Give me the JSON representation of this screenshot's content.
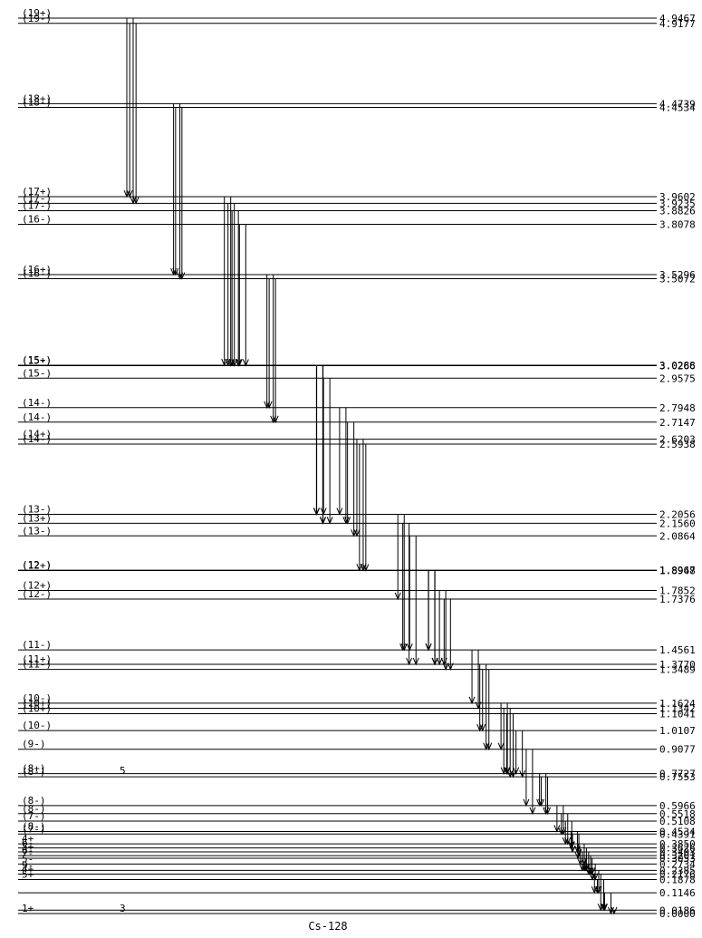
{
  "levels": [
    {
      "energy": "4.9467",
      "spin": "(19+)"
    },
    {
      "energy": "4.9177",
      "spin": "(19-)"
    },
    {
      "energy": "4.4739",
      "spin": "(18+)"
    },
    {
      "energy": "4.4534",
      "spin": "(18-)"
    },
    {
      "energy": "3.9602",
      "spin": "(17+)"
    },
    {
      "energy": "3.9235",
      "spin": "(17-)"
    },
    {
      "energy": "3.8826",
      "spin": "(17-)"
    },
    {
      "energy": "3.8078",
      "spin": "(16-)"
    },
    {
      "energy": "3.5296",
      "spin": "(16+)"
    },
    {
      "energy": "3.5072",
      "spin": "(16-)"
    },
    {
      "energy": "3.0288",
      "spin": "(15+)"
    },
    {
      "energy": "3.0266",
      "spin": "(15-)"
    },
    {
      "energy": "2.9575",
      "spin": "(15-)"
    },
    {
      "energy": "2.7948",
      "spin": "(14-)"
    },
    {
      "energy": "2.7147",
      "spin": "(14-)"
    },
    {
      "energy": "2.6203",
      "spin": "(14+)"
    },
    {
      "energy": "2.5938",
      "spin": "(14-)"
    },
    {
      "energy": "2.2056",
      "spin": "(13-)"
    },
    {
      "energy": "2.1560",
      "spin": "(13+)"
    },
    {
      "energy": "2.0864",
      "spin": "(13-)"
    },
    {
      "energy": "1.8967",
      "spin": "(12-)"
    },
    {
      "energy": "1.8948",
      "spin": "(12+)"
    },
    {
      "energy": "1.7852",
      "spin": "(12+)"
    },
    {
      "energy": "1.7376",
      "spin": "(12-)"
    },
    {
      "energy": "1.4561",
      "spin": "(11-)"
    },
    {
      "energy": "1.3770",
      "spin": "(11+)"
    },
    {
      "energy": "1.3489",
      "spin": "(11-)"
    },
    {
      "energy": "1.1624",
      "spin": "(10-)"
    },
    {
      "energy": "1.1342",
      "spin": "(10+)"
    },
    {
      "energy": "1.1041",
      "spin": "(10+)"
    },
    {
      "energy": "1.0107",
      "spin": "(10-)"
    },
    {
      "energy": "0.9077",
      "spin": "(9-)"
    },
    {
      "energy": "0.7727",
      "spin": "(8+)"
    },
    {
      "energy": "0.7553",
      "spin": "(8-)"
    },
    {
      "energy": "0.5966",
      "spin": "(8-)"
    },
    {
      "energy": "0.5518",
      "spin": "(8-)"
    },
    {
      "energy": "0.5108",
      "spin": "(7-)"
    },
    {
      "energy": "0.4534",
      "spin": "(8-)"
    },
    {
      "energy": "0.4391",
      "spin": "(7-)"
    },
    {
      "energy": "0.3850",
      "spin": "4+"
    },
    {
      "energy": "0.3626",
      "spin": "6-"
    },
    {
      "energy": "0.3403",
      "spin": "5+"
    },
    {
      "energy": "0.3201",
      "spin": "6-"
    },
    {
      "energy": "0.3053",
      "spin": "7-"
    },
    {
      "energy": "0.2734",
      "spin": "5-"
    },
    {
      "energy": "0.2385",
      "spin": "9-"
    },
    {
      "energy": "0.2176",
      "spin": "4+"
    },
    {
      "energy": "0.1878",
      "spin": "5+"
    },
    {
      "energy": "0.1146"
    },
    {
      "energy": "0.0186"
    },
    {
      "energy": "0.0000",
      "spin": "1+"
    }
  ],
  "notes": [
    "5",
    "3"
  ],
  "nuclide": "Cs-128"
}
